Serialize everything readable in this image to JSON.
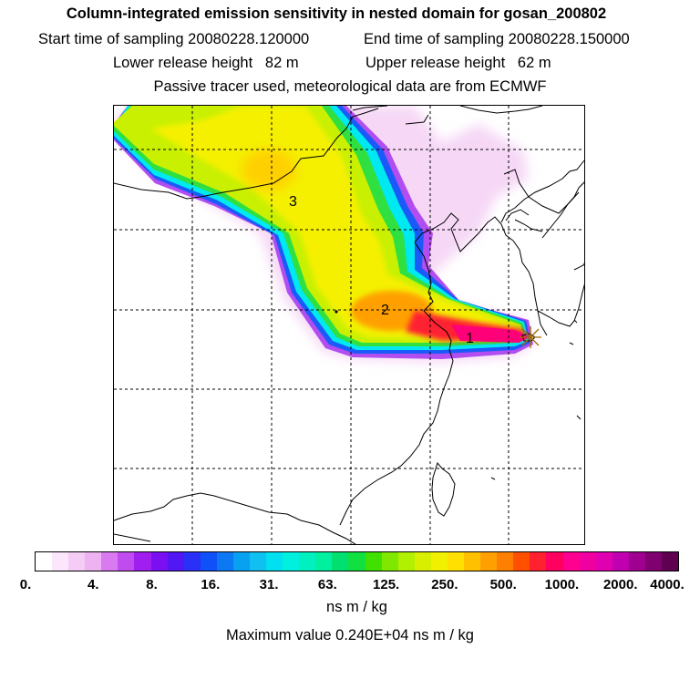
{
  "title": "Column-integrated emission sensitivity in nested domain for gosan_200802",
  "start_label": "Start time of sampling 20080228.120000",
  "end_label": "End time of sampling 20080228.150000",
  "lower_label": "Lower release height   82 m",
  "upper_label": "Upper release height   62 m",
  "tracer_label": "Passive tracer used, meteorological data are from ECMWF",
  "map": {
    "cluster_labels": [
      "1",
      "2",
      "3"
    ],
    "release_marker": "star-icon"
  },
  "colorbar": {
    "ticks": [
      "0.",
      "4.",
      "8.",
      "16.",
      "31.",
      "63.",
      "125.",
      "250.",
      "500.",
      "1000.",
      "2000.",
      "4000."
    ],
    "colors": [
      "#ffffff",
      "#fbe6fb",
      "#f4ccf6",
      "#eeb2f2",
      "#d97af0",
      "#c04cf0",
      "#a01ef0",
      "#7a10f2",
      "#5218f4",
      "#2a30f8",
      "#1050f8",
      "#0c78f4",
      "#08a0f0",
      "#10c0f0",
      "#00e0f0",
      "#00f0e0",
      "#00f0c0",
      "#00f0a0",
      "#00e070",
      "#10e040",
      "#40e000",
      "#80e800",
      "#b0f000",
      "#d8f000",
      "#f0f000",
      "#ffe000",
      "#ffc000",
      "#ffa000",
      "#ff8000",
      "#ff5000",
      "#ff2030",
      "#ff0060",
      "#ff0090",
      "#f000a0",
      "#e000b0",
      "#c000b0",
      "#a00090",
      "#800070",
      "#600050"
    ],
    "units": "ns m / kg"
  },
  "max_label": "Maximum value  0.240E+04 ns m / kg"
}
